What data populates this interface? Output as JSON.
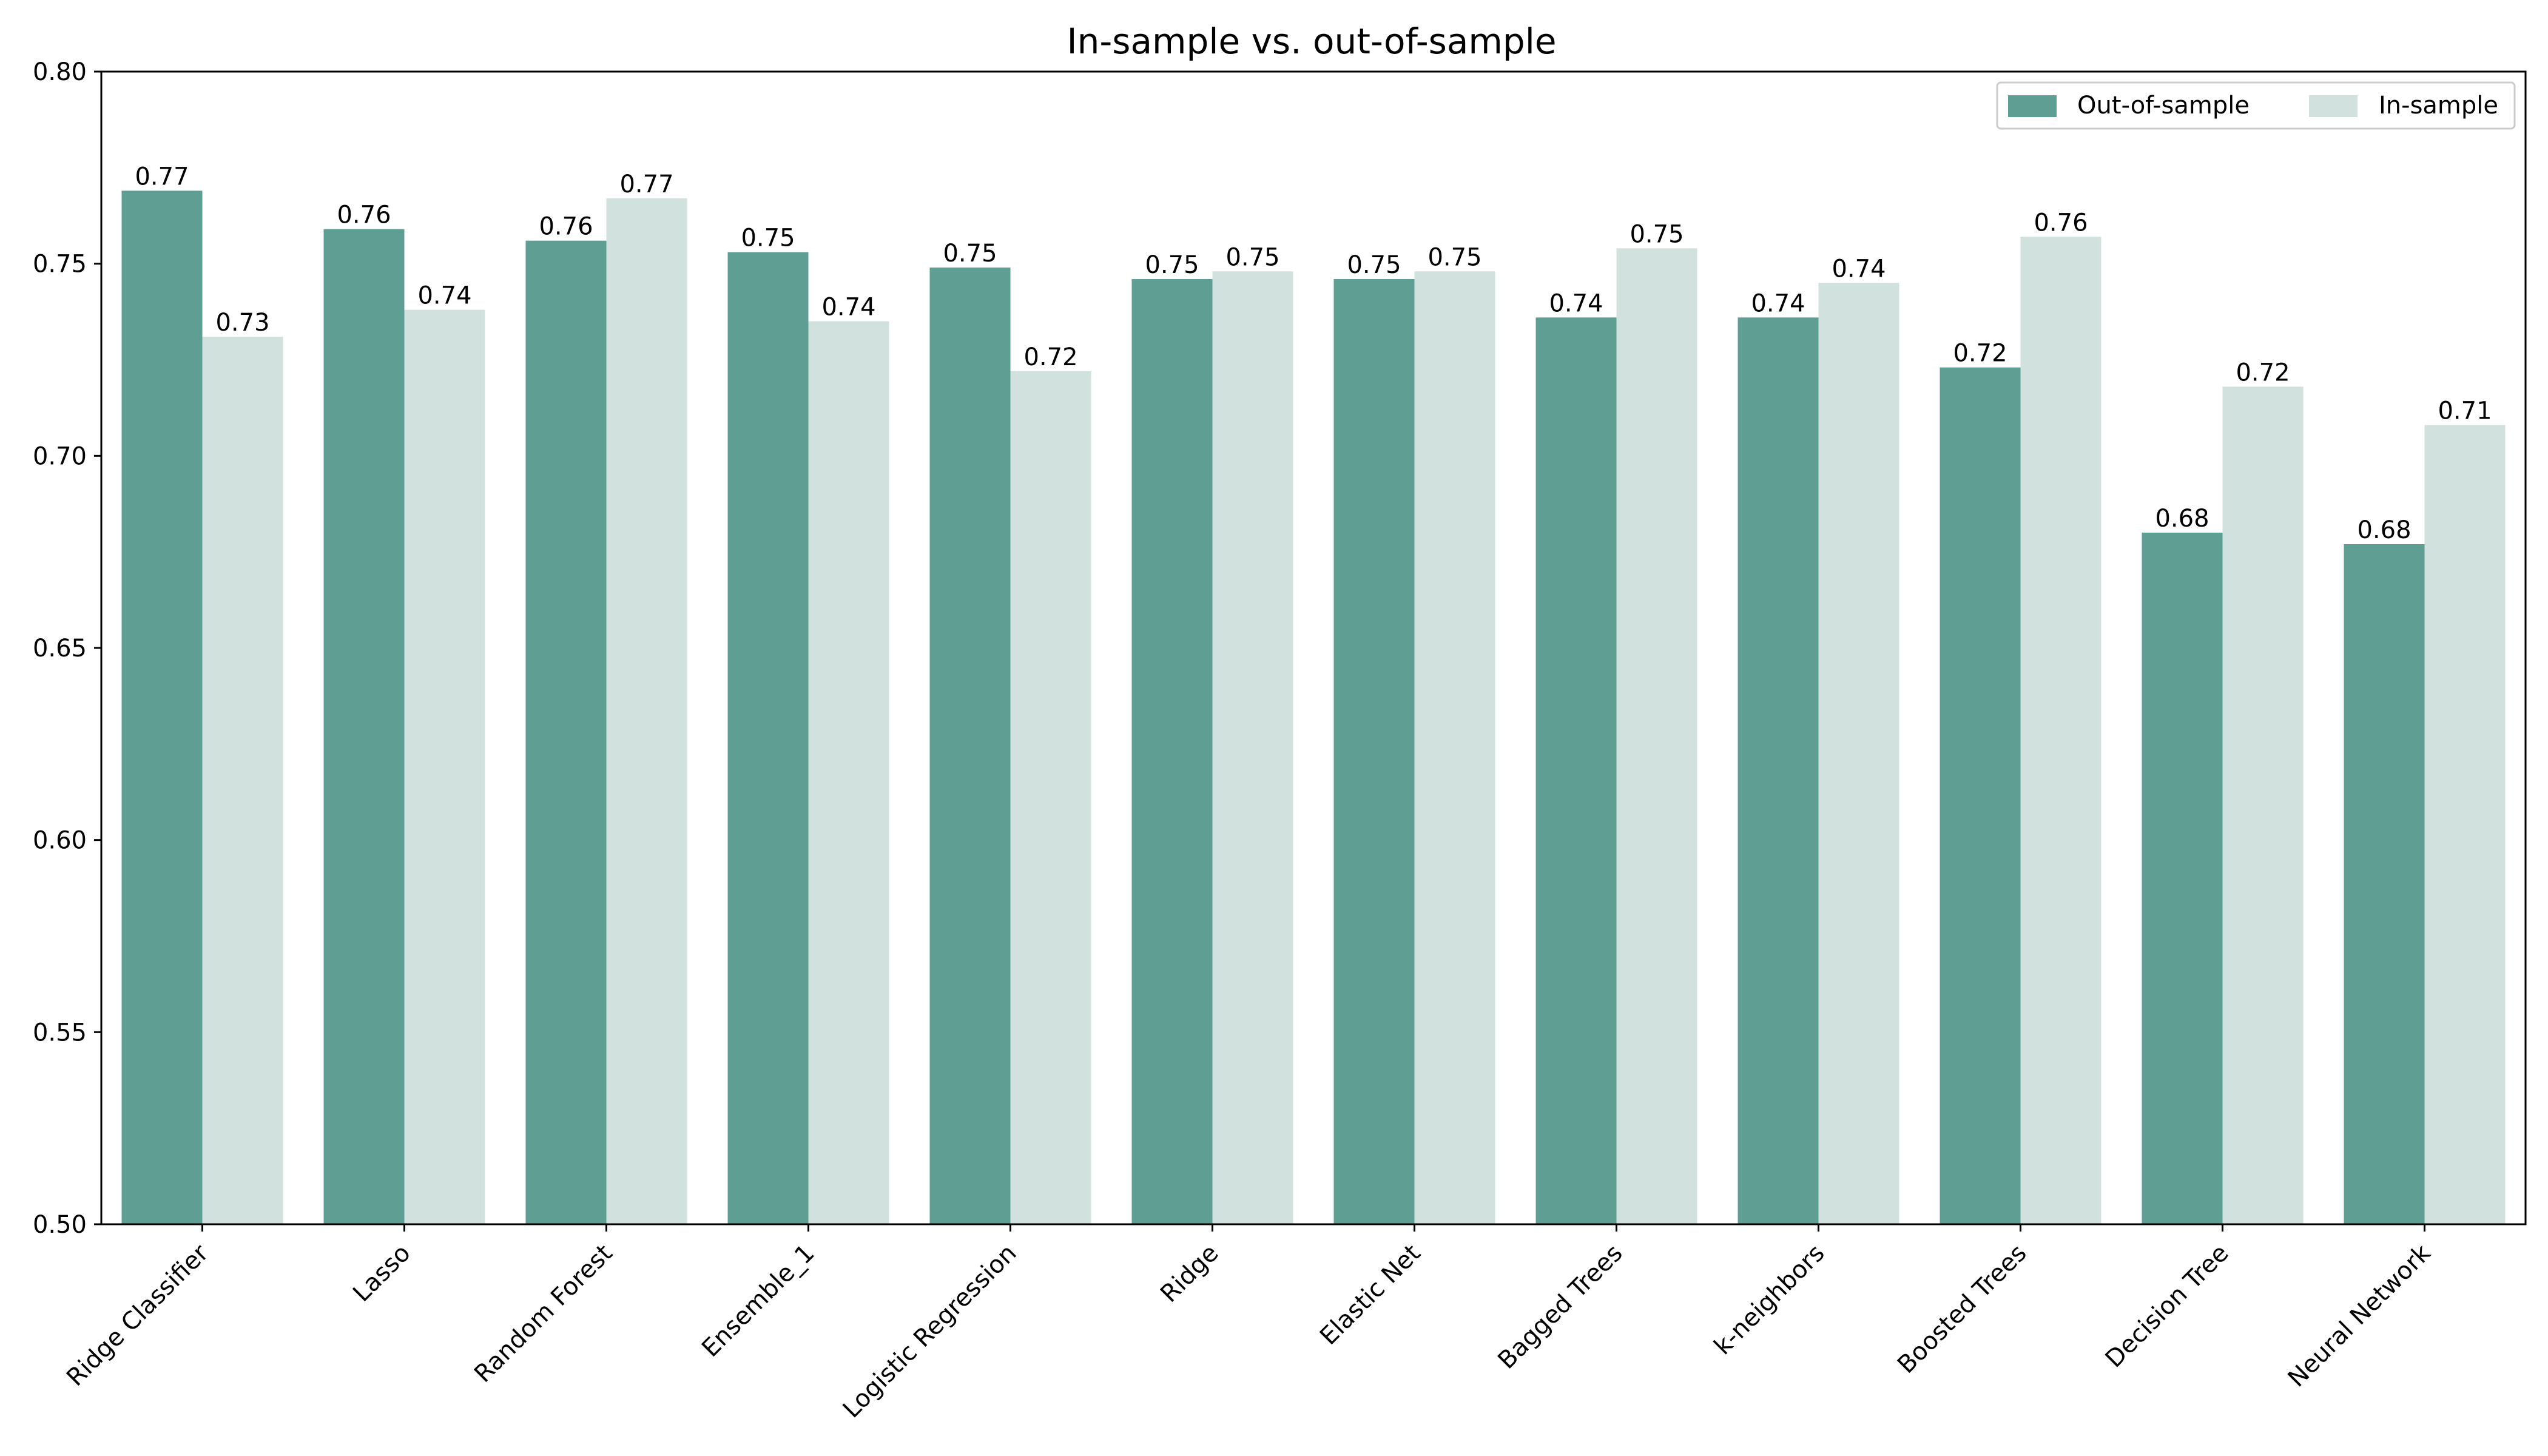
{
  "chart_data": {
    "type": "bar",
    "title": "In-sample vs. out-of-sample",
    "xlabel": "",
    "ylabel": "",
    "ylim": [
      0.5,
      0.8
    ],
    "yticks": [
      "0.50",
      "0.55",
      "0.60",
      "0.65",
      "0.70",
      "0.75",
      "0.80"
    ],
    "grid": false,
    "legend_position": "top-right",
    "categories": [
      "Ridge Classifier",
      "Lasso",
      "Random Forest",
      "Ensemble_1",
      "Logistic Regression",
      "Ridge",
      "Elastic Net",
      "Bagged Trees",
      "k-neighbors",
      "Boosted Trees",
      "Decision Tree",
      "Neural Network"
    ],
    "series": [
      {
        "name": "Out-of-sample",
        "color": "#5f9e93",
        "values": [
          0.769,
          0.759,
          0.756,
          0.753,
          0.749,
          0.746,
          0.746,
          0.736,
          0.736,
          0.723,
          0.68,
          0.677
        ],
        "labels": [
          "0.77",
          "0.76",
          "0.76",
          "0.75",
          "0.75",
          "0.75",
          "0.75",
          "0.74",
          "0.74",
          "0.72",
          "0.68",
          "0.68"
        ]
      },
      {
        "name": "In-sample",
        "color": "#d0e1de",
        "values": [
          0.731,
          0.738,
          0.767,
          0.735,
          0.722,
          0.748,
          0.748,
          0.754,
          0.745,
          0.757,
          0.718,
          0.708
        ],
        "labels": [
          "0.73",
          "0.74",
          "0.77",
          "0.74",
          "0.72",
          "0.75",
          "0.75",
          "0.75",
          "0.74",
          "0.76",
          "0.72",
          "0.71"
        ]
      }
    ]
  }
}
